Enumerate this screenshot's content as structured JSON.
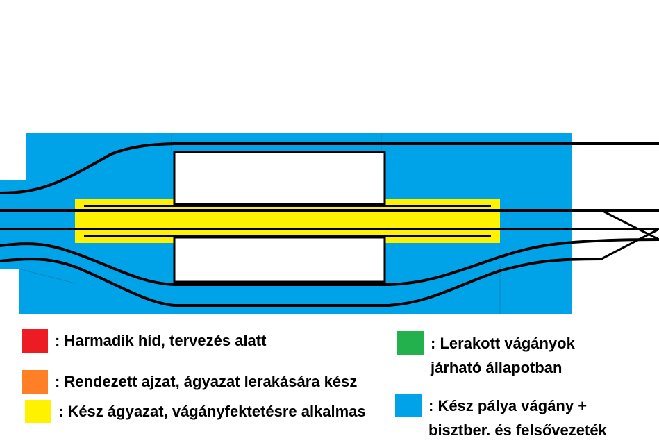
{
  "colors": {
    "red": "#ed1c24",
    "orange": "#ff7f27",
    "yellow": "#fff200",
    "green": "#22b14c",
    "blue": "#00a2e8",
    "track": "#000000",
    "opening": "#ffffff"
  },
  "legend": [
    {
      "id": "red",
      "color": "#ed1c24",
      "label": ": Harmadik híd, tervezés alatt"
    },
    {
      "id": "orange",
      "color": "#ff7f27",
      "label": ": Rendezett ajzat, ágyazat lerakására kész"
    },
    {
      "id": "yellow",
      "color": "#fff200",
      "label": ": Kész ágyazat, vágányfektetésre alkalmas"
    },
    {
      "id": "green",
      "color": "#22b14c",
      "label": ": Lerakott vágányok\njárható állapotban"
    },
    {
      "id": "blue",
      "color": "#00a2e8",
      "label": ": Kész pálya vágány +\nbisztber. és felsővezeték"
    }
  ]
}
